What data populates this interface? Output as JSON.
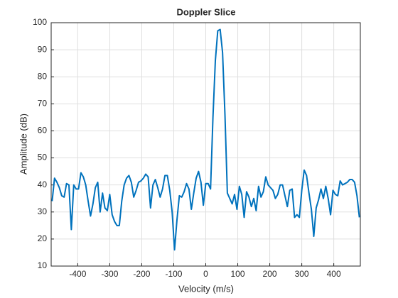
{
  "chart_data": {
    "type": "line",
    "title": "Doppler Slice",
    "xlabel": "Velocity (m/s)",
    "ylabel": "Amplitude (dB)",
    "x": [
      -480,
      -472.5,
      -465,
      -457.5,
      -450,
      -442.5,
      -435,
      -427.5,
      -420,
      -412.5,
      -405,
      -397.5,
      -390,
      -382.5,
      -375,
      -367.5,
      -360,
      -352.5,
      -345,
      -337.5,
      -330,
      -322.5,
      -315,
      -307.5,
      -300,
      -292.5,
      -285,
      -277.5,
      -270,
      -262.5,
      -255,
      -247.5,
      -240,
      -232.5,
      -225,
      -217.5,
      -210,
      -202.5,
      -195,
      -187.5,
      -180,
      -172.5,
      -165,
      -157.5,
      -150,
      -142.5,
      -135,
      -127.5,
      -120,
      -112.5,
      -105,
      -97.5,
      -90,
      -82.5,
      -75,
      -67.5,
      -60,
      -52.5,
      -45,
      -37.5,
      -30,
      -22.5,
      -15,
      -7.5,
      0,
      7.5,
      15,
      22.5,
      30,
      37.5,
      45,
      52.5,
      60,
      67.5,
      75,
      82.5,
      90,
      97.5,
      105,
      112.5,
      120,
      127.5,
      135,
      142.5,
      150,
      157.5,
      165,
      172.5,
      180,
      187.5,
      195,
      202.5,
      210,
      217.5,
      225,
      232.5,
      240,
      247.5,
      255,
      262.5,
      270,
      277.5,
      285,
      292.5,
      300,
      307.5,
      315,
      322.5,
      330,
      337.5,
      345,
      352.5,
      360,
      367.5,
      375,
      382.5,
      390,
      397.5,
      405,
      412.5,
      420,
      427.5,
      435,
      442.5,
      450,
      457.5,
      465,
      472.5,
      480
    ],
    "series": [
      {
        "name": "Amplitude",
        "color": "#0072bd",
        "values": [
          34,
          42.5,
          41,
          39,
          36,
          35.5,
          40.5,
          40,
          23.5,
          40,
          38.5,
          38.5,
          44.5,
          43,
          40,
          34,
          28.5,
          33,
          39,
          41,
          30,
          37,
          31.5,
          30.5,
          36.5,
          29,
          26.5,
          25,
          25,
          34,
          40,
          42.5,
          43.5,
          41,
          35.5,
          38,
          41,
          41.5,
          42.5,
          44,
          43,
          31.5,
          40,
          42,
          39,
          35.5,
          38.5,
          43.5,
          43.5,
          38,
          30,
          16,
          27,
          36,
          35.5,
          37.5,
          40.5,
          38.5,
          31,
          37,
          42.5,
          45,
          41,
          32.5,
          40.5,
          40.5,
          38.5,
          65,
          86,
          97,
          97.5,
          89,
          66,
          37,
          35,
          33,
          36.5,
          31,
          39.5,
          36.5,
          28,
          37.5,
          35.5,
          32,
          35,
          30.5,
          39.5,
          35.5,
          37.5,
          43,
          40,
          39,
          38,
          35,
          36.5,
          40,
          40,
          36,
          32,
          38,
          38.5,
          28,
          29,
          28,
          38,
          45.5,
          43.5,
          37,
          31,
          21,
          31.5,
          34.5,
          38.5,
          35,
          39.5,
          35,
          29,
          38,
          36.5,
          36,
          41.5,
          40,
          40.5,
          41,
          42,
          42,
          41,
          36,
          28
        ]
      }
    ],
    "xlim": [
      -483,
      483
    ],
    "ylim": [
      10,
      100
    ],
    "xticks": [
      -400,
      -300,
      -200,
      -100,
      0,
      100,
      200,
      300,
      400
    ],
    "yticks": [
      10,
      20,
      30,
      40,
      50,
      60,
      70,
      80,
      90,
      100
    ],
    "grid": true
  }
}
